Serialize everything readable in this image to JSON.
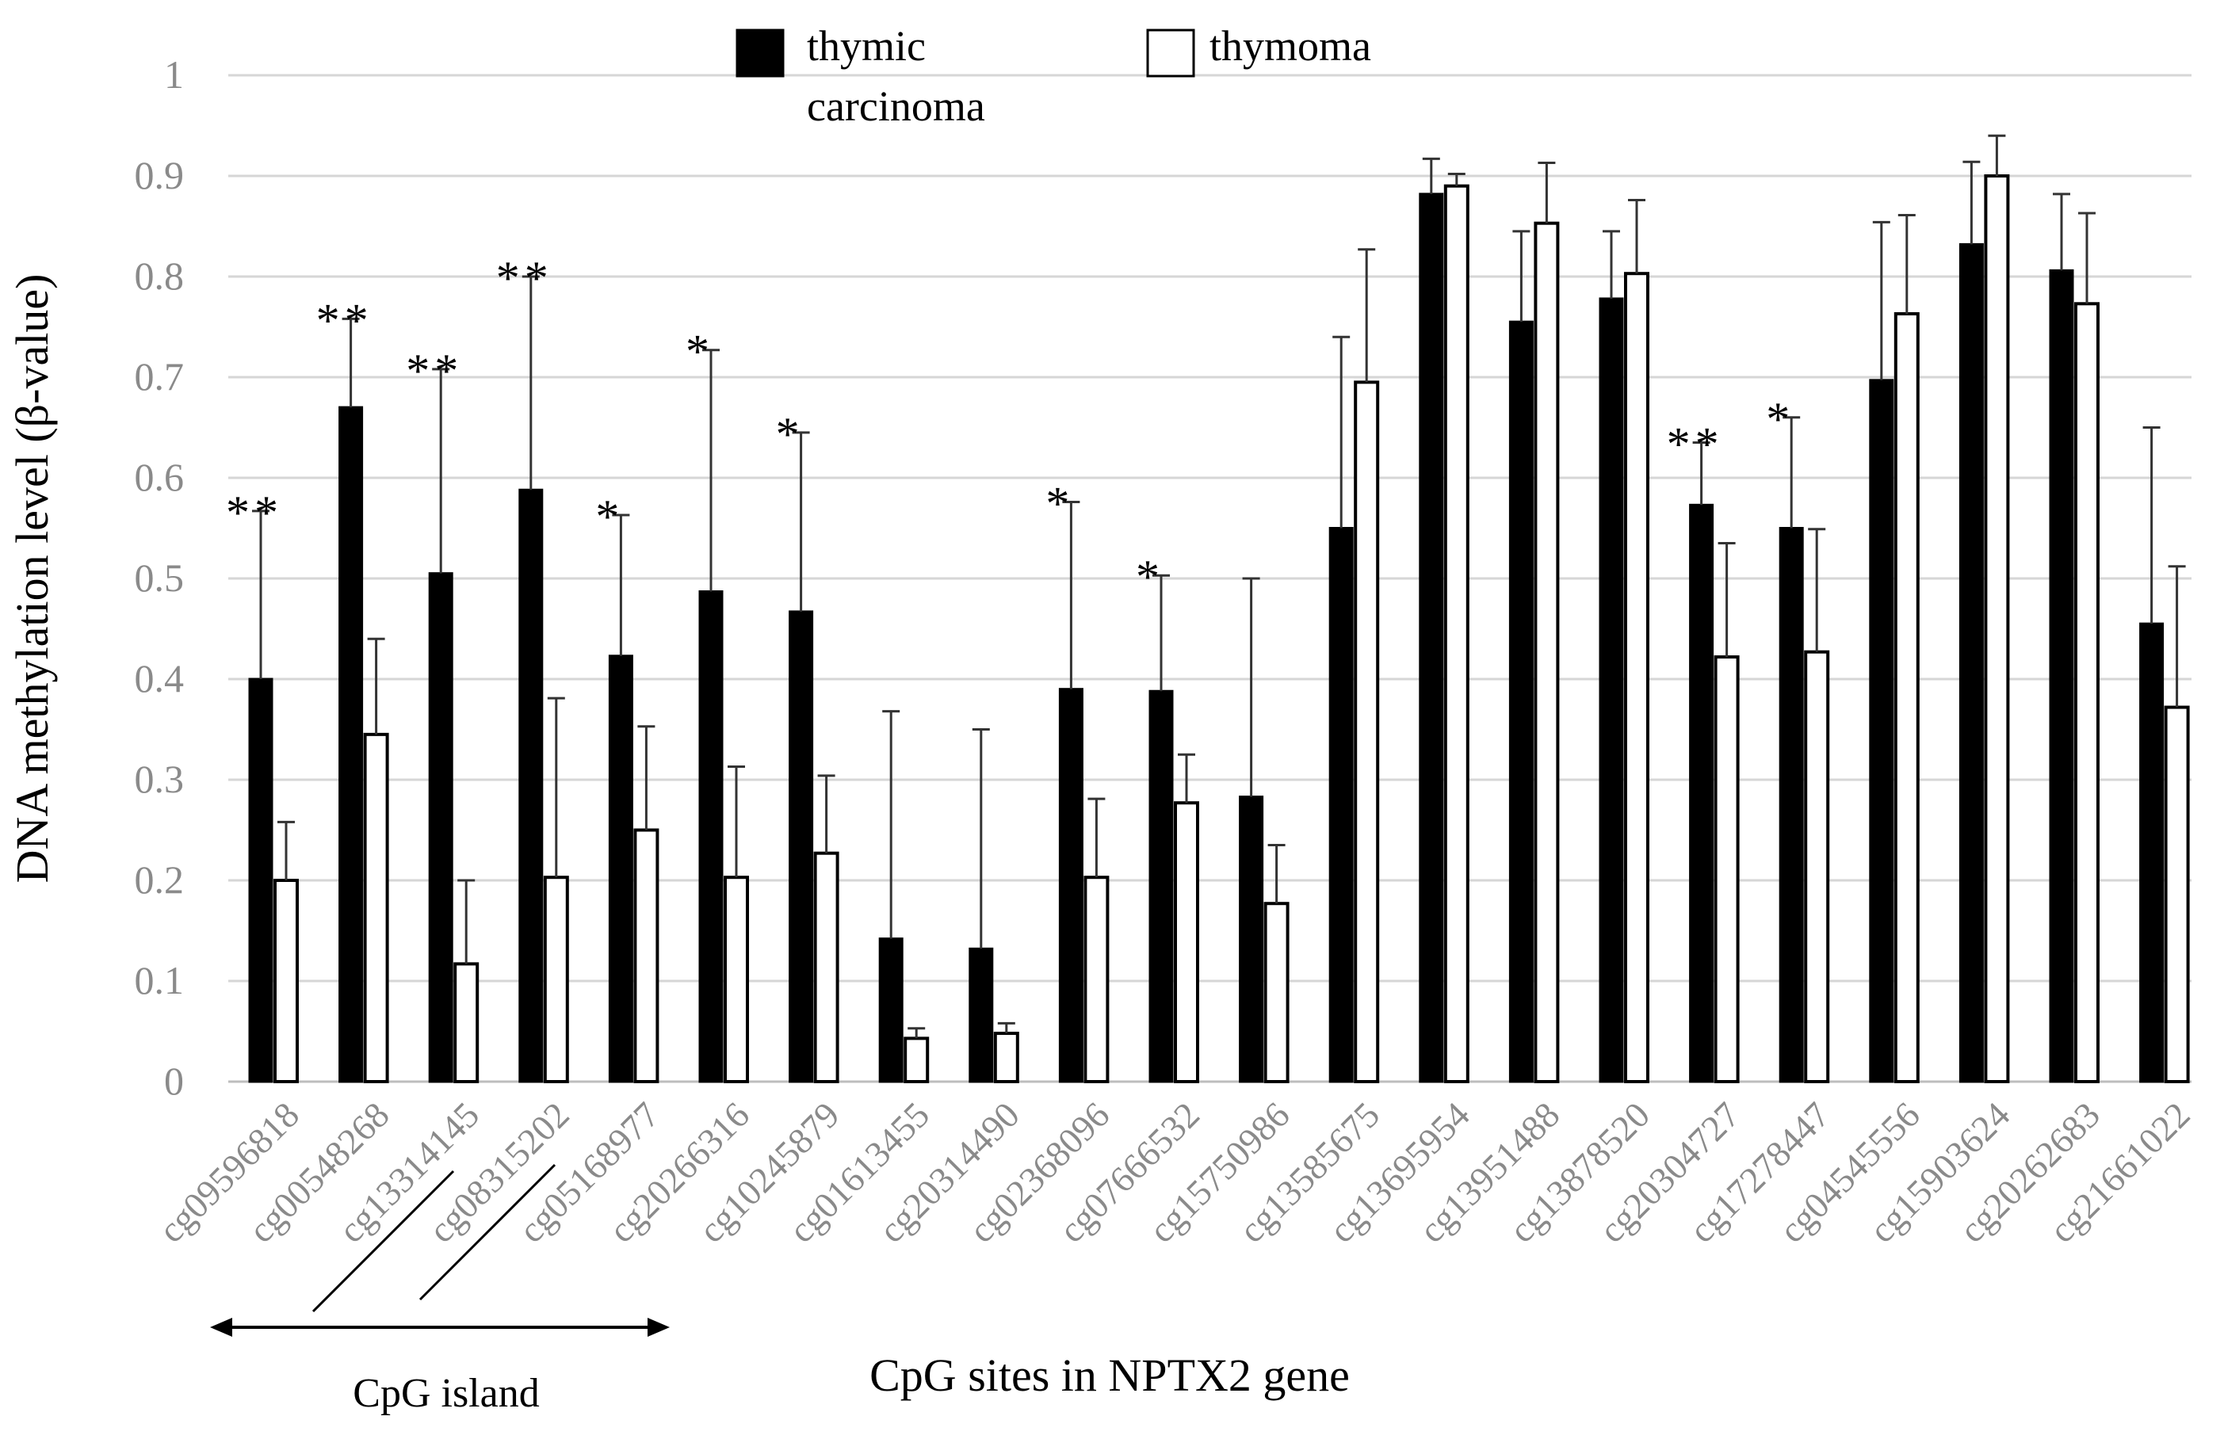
{
  "chart_data": {
    "type": "bar",
    "ylabel": "DNA methylation level (β-value)",
    "xlabel": "CpG sites in NPTX2 gene",
    "ylim": [
      0,
      1
    ],
    "y_ticks": [
      "0",
      "0.1",
      "0.2",
      "0.3",
      "0.4",
      "0.5",
      "0.6",
      "0.7",
      "0.8",
      "0.9",
      "1"
    ],
    "grid": true,
    "legend_position": "top",
    "categories": [
      "cg09596818",
      "cg00548268",
      "cg13314145",
      "cg08315202",
      "cg05168977",
      "cg20266316",
      "cg10245879",
      "cg01613455",
      "cg20314490",
      "cg02368096",
      "cg07666532",
      "cg15750986",
      "cg13585675",
      "cg13695954",
      "cg13951488",
      "cg13878520",
      "cg20304727",
      "cg17278447",
      "cg04545556",
      "cg15903624",
      "cg20262683",
      "cg21661022"
    ],
    "series": [
      {
        "name": "thymic carcinoma",
        "legend_lines": [
          "thymic",
          "carcinoma"
        ],
        "color": "#000000",
        "values": [
          0.4,
          0.67,
          0.505,
          0.588,
          0.423,
          0.487,
          0.467,
          0.142,
          0.132,
          0.39,
          0.388,
          0.283,
          0.55,
          0.882,
          0.755,
          0.778,
          0.573,
          0.55,
          0.697,
          0.832,
          0.806,
          0.455
        ],
        "errors": [
          0.167,
          0.088,
          0.203,
          0.212,
          0.14,
          0.24,
          0.178,
          0.226,
          0.218,
          0.186,
          0.115,
          0.217,
          0.19,
          0.035,
          0.09,
          0.067,
          0.062,
          0.11,
          0.157,
          0.082,
          0.076,
          0.195
        ]
      },
      {
        "name": "thymoma",
        "legend_lines": [
          "thymoma"
        ],
        "color": "#ffffff",
        "values": [
          0.2,
          0.345,
          0.117,
          0.203,
          0.25,
          0.203,
          0.227,
          0.043,
          0.048,
          0.203,
          0.277,
          0.177,
          0.695,
          0.89,
          0.853,
          0.803,
          0.422,
          0.427,
          0.763,
          0.9,
          0.773,
          0.372
        ],
        "errors": [
          0.058,
          0.095,
          0.083,
          0.178,
          0.103,
          0.11,
          0.077,
          0.01,
          0.01,
          0.078,
          0.048,
          0.058,
          0.132,
          0.012,
          0.06,
          0.073,
          0.113,
          0.122,
          0.098,
          0.04,
          0.09,
          0.14
        ]
      }
    ],
    "significance": [
      "**",
      "**",
      "**",
      "**",
      "*",
      "*",
      "*",
      "",
      "",
      "*",
      "*",
      "",
      "",
      "",
      "",
      "",
      "**",
      "*",
      "",
      "",
      "",
      ""
    ],
    "annotations": [
      {
        "label": "CpG island",
        "from_category": 0,
        "to_category": 4
      }
    ]
  }
}
